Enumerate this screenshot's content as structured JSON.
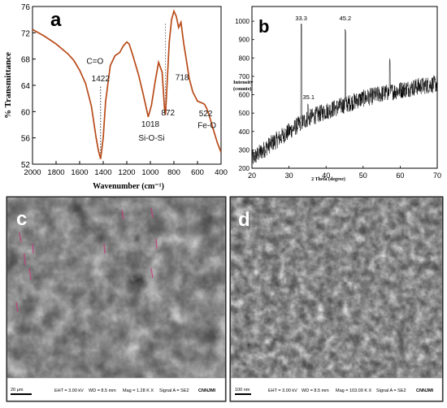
{
  "panels": {
    "a": {
      "letter": "a"
    },
    "b": {
      "letter": "b"
    },
    "c": {
      "letter": "c"
    },
    "d": {
      "letter": "d"
    }
  },
  "chart_data": [
    {
      "id": "ftir",
      "type": "line",
      "xlabel": "Wavenumber (cm⁻¹)",
      "ylabel": "% Transmittance",
      "xlim": [
        2000,
        400
      ],
      "ylim": [
        52,
        76
      ],
      "xticks": [
        2000,
        1800,
        1600,
        1400,
        1200,
        1000,
        800,
        600,
        400
      ],
      "yticks": [
        52,
        56,
        60,
        64,
        68,
        72,
        76
      ],
      "color": "#b84a18",
      "x": [
        2000,
        1900,
        1800,
        1700,
        1650,
        1600,
        1550,
        1500,
        1460,
        1440,
        1422,
        1400,
        1380,
        1340,
        1300,
        1260,
        1230,
        1200,
        1180,
        1150,
        1100,
        1060,
        1018,
        990,
        960,
        930,
        900,
        880,
        872,
        860,
        840,
        820,
        800,
        780,
        760,
        740,
        718,
        700,
        670,
        640,
        600,
        560,
        540,
        522,
        500,
        470,
        430,
        400
      ],
      "y": [
        72.5,
        71.5,
        70.3,
        68.8,
        67.8,
        66.3,
        64.3,
        60.8,
        56.0,
        54.0,
        52.8,
        56.0,
        61.5,
        67.0,
        68.5,
        69.0,
        70.0,
        70.6,
        70.3,
        68.6,
        65.6,
        62.6,
        59.2,
        61.0,
        64.5,
        67.5,
        66.0,
        60.5,
        59.5,
        63.5,
        70.5,
        74.0,
        75.3,
        74.5,
        72.8,
        73.6,
        70.5,
        68.5,
        65.0,
        63.0,
        61.6,
        61.3,
        61.1,
        60.5,
        59.4,
        57.5,
        55.2,
        53.8
      ],
      "annotations": [
        {
          "text": "C=O",
          "x": 1470,
          "y": 67.3
        },
        {
          "text": "1422",
          "x": 1422,
          "y": 64.6
        },
        {
          "text": "1018",
          "x": 1000,
          "y": 57.7
        },
        {
          "text": "Si-O-Si",
          "x": 990,
          "y": 55.6
        },
        {
          "text": "872",
          "x": 850,
          "y": 59.4
        },
        {
          "text": "718",
          "x": 730,
          "y": 64.8
        },
        {
          "text": "522",
          "x": 530,
          "y": 59.3
        },
        {
          "text": "Fe-O",
          "x": 520,
          "y": 57.5
        }
      ]
    },
    {
      "id": "xrd",
      "type": "line",
      "xlabel": "2 Theta (degree)",
      "ylabel": "Intensity (counts)",
      "xlim": [
        20,
        70
      ],
      "ylim": [
        200,
        1080
      ],
      "xticks": [
        20,
        30,
        40,
        50,
        60,
        70
      ],
      "yticks": [
        200,
        300,
        400,
        500,
        600,
        700,
        800,
        900,
        1000
      ],
      "color": "#000000",
      "baseline": [
        [
          20,
          250
        ],
        [
          25,
          330
        ],
        [
          30,
          400
        ],
        [
          35,
          470
        ],
        [
          40,
          510
        ],
        [
          45,
          545
        ],
        [
          50,
          580
        ],
        [
          55,
          605
        ],
        [
          60,
          625
        ],
        [
          65,
          645
        ],
        [
          70,
          660
        ]
      ],
      "peaks": [
        {
          "x": 33.3,
          "y": 1000
        },
        {
          "x": 35.1,
          "y": 560
        },
        {
          "x": 45.2,
          "y": 960
        },
        {
          "x": 57.2,
          "y": 800
        }
      ],
      "annotations": [
        {
          "text": "33.3",
          "x": 33.3,
          "y": 1005
        },
        {
          "text": "35.1",
          "x": 35.3,
          "y": 575
        },
        {
          "text": "45.2",
          "x": 45.2,
          "y": 1005
        }
      ]
    }
  ],
  "sem": {
    "c": {
      "scalebar": "20 μm",
      "eht": "EHT = 3.00 kV",
      "wd": "WD = 8.5 mm",
      "mag": "Mag = 1.28 K X",
      "signal": "Signal A = SE2",
      "lab": "CNNJMI"
    },
    "d": {
      "scalebar": "100 nm",
      "eht": "EHT = 3.00 kV",
      "wd": "WD = 8.5 mm",
      "mag": "Mag = 103.09 K X",
      "signal": "Signal A = SE2",
      "lab": "CNNJMI"
    }
  }
}
